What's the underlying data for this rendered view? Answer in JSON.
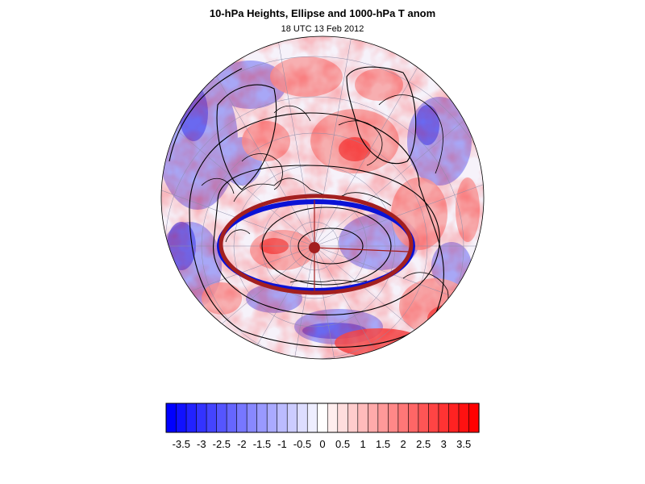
{
  "figure": {
    "title": "10-hPa Heights, Ellipse and 1000-hPa T anom",
    "subtitle": "18 UTC 13 Feb 2012"
  },
  "colors": {
    "ellipse_fit": "#a31f1f",
    "ellipse_obs": "#0a12d6",
    "contour": "#000000",
    "coastline": "#000000",
    "graticule": "#8c8ca8",
    "scale_min": "#0000ff",
    "scale_mid": "#ffffff",
    "scale_max": "#ff0000"
  },
  "map": {
    "projection": "orthographic (north polar)",
    "shaded_field": "1000-hPa temperature anomaly",
    "contour_field": "10-hPa geopotential height"
  },
  "colorbar": {
    "levels": [
      -3.75,
      -3.5,
      -3.25,
      -3,
      -2.75,
      -2.5,
      -2.25,
      -2,
      -1.75,
      -1.5,
      -1.25,
      -1,
      -0.75,
      -0.5,
      -0.25,
      0,
      0.25,
      0.5,
      0.75,
      1,
      1.25,
      1.5,
      1.75,
      2,
      2.25,
      2.5,
      2.75,
      3,
      3.25,
      3.5,
      3.75
    ],
    "tick_labels": [
      "-3.5",
      "-3",
      "-2.5",
      "-2",
      "-1.5",
      "-1",
      "-0.5",
      "0",
      "0.5",
      "1",
      "1.5",
      "2",
      "2.5",
      "3",
      "3.5"
    ]
  }
}
